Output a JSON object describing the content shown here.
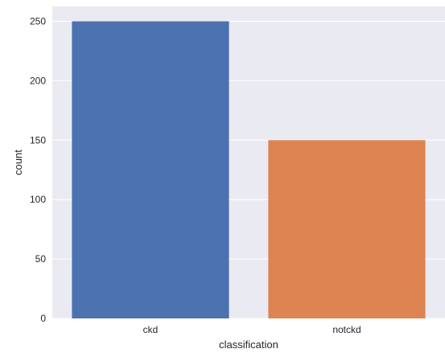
{
  "chart_data": {
    "type": "bar",
    "categories": [
      "ckd",
      "notckd"
    ],
    "values": [
      250,
      150
    ],
    "xlabel": "classification",
    "ylabel": "count",
    "ylim": [
      0,
      262.5
    ],
    "yticks": [
      0,
      50,
      100,
      150,
      200,
      250
    ],
    "grid": true,
    "colors": {
      "background": "#eaeaf2",
      "grid": "#ffffff",
      "bars": [
        "#4c72b0",
        "#dd8452"
      ]
    }
  }
}
